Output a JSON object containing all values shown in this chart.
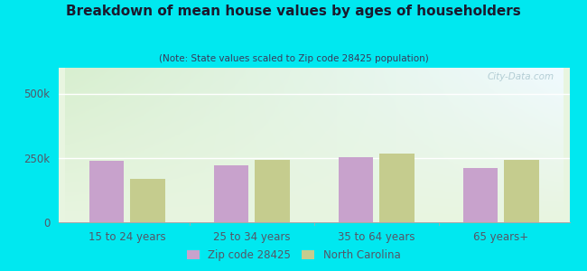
{
  "title": "Breakdown of mean house values by ages of householders",
  "subtitle": "(Note: State values scaled to Zip code 28425 population)",
  "categories": [
    "15 to 24 years",
    "25 to 34 years",
    "35 to 64 years",
    "65 years+"
  ],
  "zip_values": [
    237000,
    220000,
    252000,
    210000
  ],
  "nc_values": [
    170000,
    243000,
    268000,
    242000
  ],
  "zip_color": "#c8a2cc",
  "nc_color": "#c5cc8e",
  "ylim": [
    0,
    600000
  ],
  "yticks": [
    0,
    250000,
    500000
  ],
  "ytick_labels": [
    "0",
    "250k",
    "500k"
  ],
  "outer_bg": "#00e8f0",
  "plot_bg_topleft": "#d8efd0",
  "plot_bg_topright": "#f0faff",
  "plot_bg_bottom": "#e8f5e0",
  "legend_zip": "Zip code 28425",
  "legend_nc": "North Carolina",
  "watermark": "City-Data.com",
  "title_color": "#1a1a2e",
  "subtitle_color": "#3a3a5a",
  "tick_color": "#555566",
  "bar_width": 0.28,
  "bar_gap": 0.05
}
